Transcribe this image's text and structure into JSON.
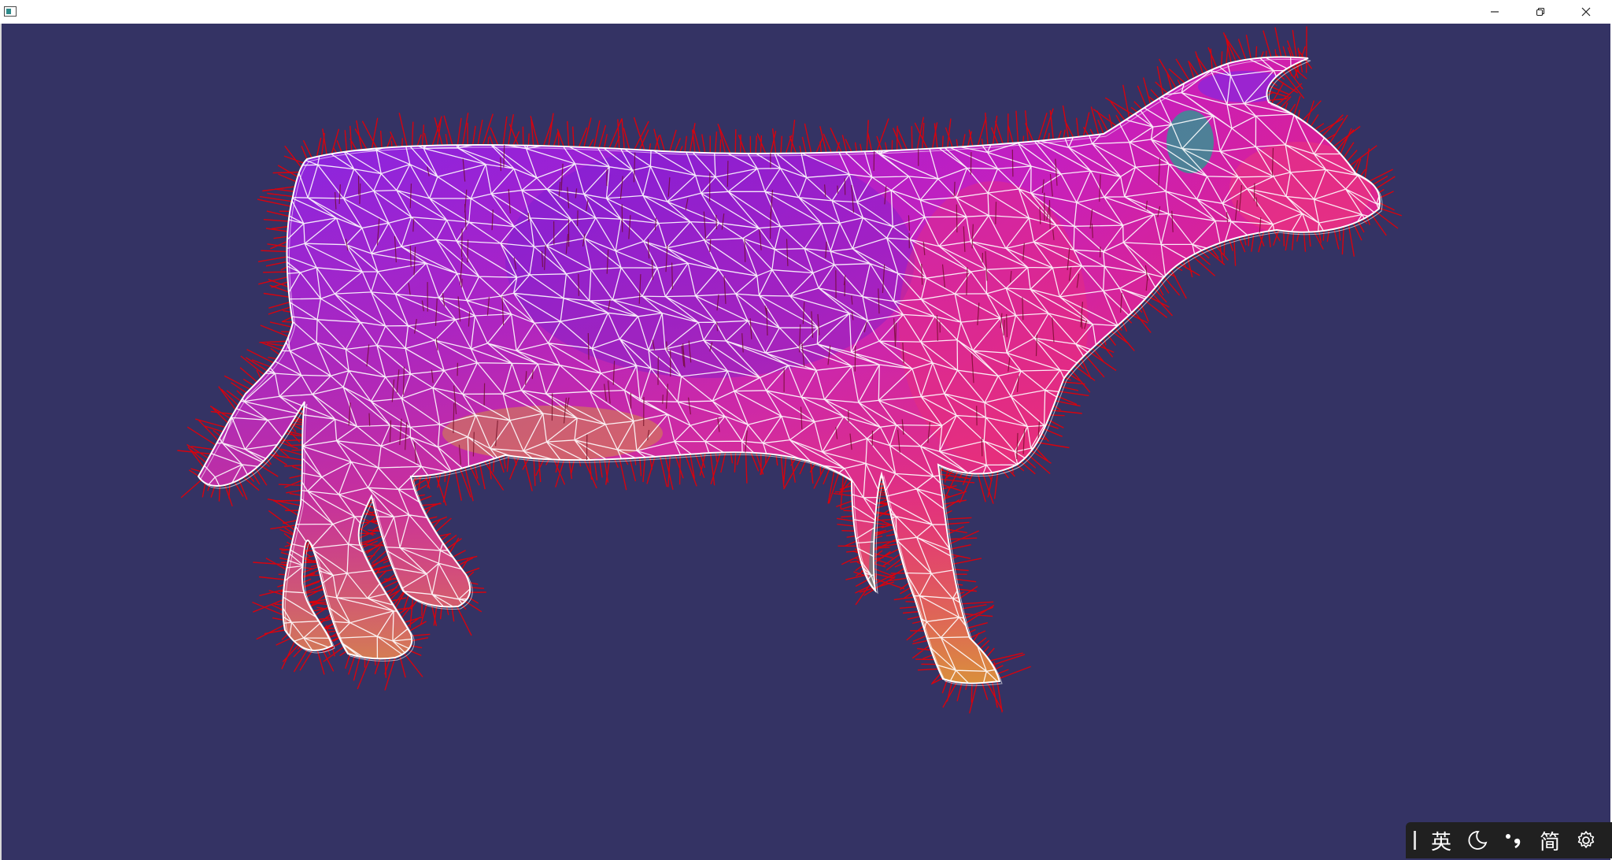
{
  "window": {
    "icon": "app-window-icon",
    "controls": [
      "minimize-icon",
      "restore-icon",
      "close-icon"
    ]
  },
  "viewport": {
    "background": "#343364",
    "wireframe_color": "#ffffff",
    "normals_color": "#e0000a",
    "surface_colors": [
      "#7a28e6",
      "#b21fd0",
      "#e0208c",
      "#e8406a",
      "#c8a030",
      "#23a090"
    ]
  },
  "ime_toolbar": {
    "language_label": "英",
    "script_label": "简",
    "icons": [
      "cursor-bar-icon",
      "moon-icon",
      "punctuation-icon",
      "gear-icon"
    ]
  }
}
